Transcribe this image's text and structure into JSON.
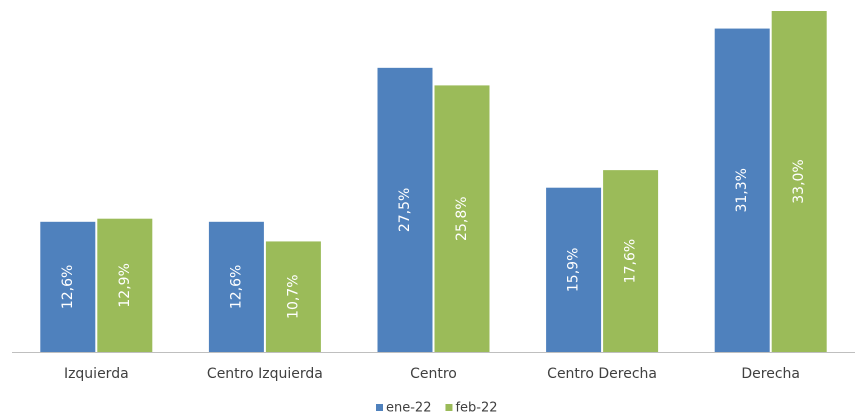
{
  "chart_data": {
    "type": "bar",
    "categories": [
      "Izquierda",
      "Centro Izquierda",
      "Centro",
      "Centro Derecha",
      "Derecha"
    ],
    "series": [
      {
        "name": "ene-22",
        "color": "#4f81bd",
        "values": [
          12.6,
          12.6,
          27.5,
          15.9,
          31.3
        ],
        "value_labels": [
          "12,6%",
          "12,6%",
          "27,5%",
          "15,9%",
          "31,3%"
        ]
      },
      {
        "name": "feb-22",
        "color": "#9bbb59",
        "values": [
          12.9,
          10.7,
          25.8,
          17.6,
          33.0
        ],
        "value_labels": [
          "12,9%",
          "10,7%",
          "25,8%",
          "17,6%",
          "33,0%"
        ]
      }
    ],
    "legend": "bottom"
  }
}
